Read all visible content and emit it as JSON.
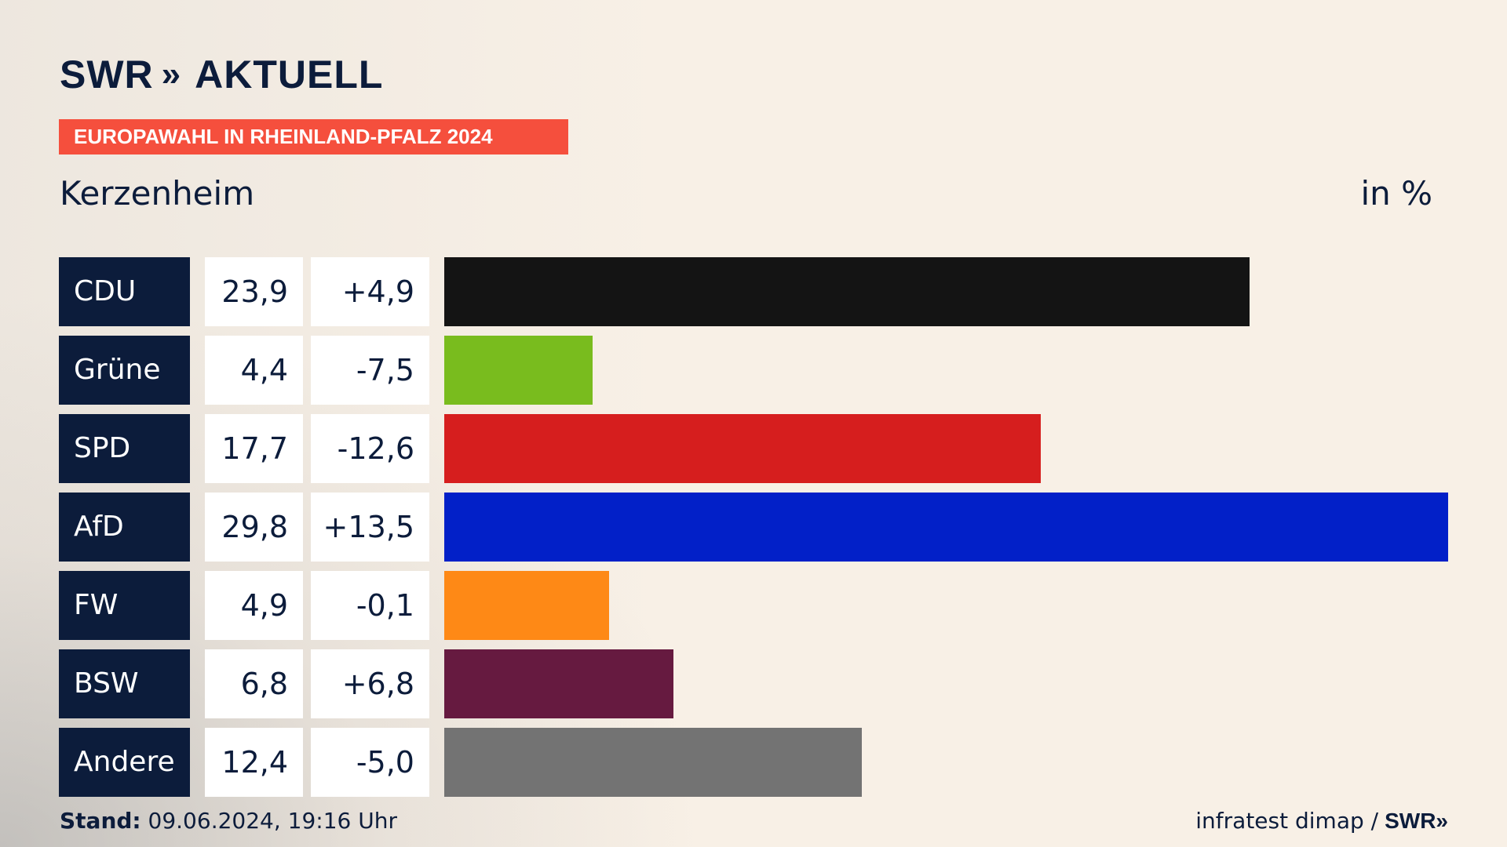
{
  "brand": {
    "name": "SWR",
    "section": "AKTUELL",
    "chevrons": "»"
  },
  "header": {
    "election": "EUROPAWAHL IN RHEINLAND-PFALZ 2024",
    "region": "Kerzenheim",
    "unit": "in %"
  },
  "chart_data": {
    "type": "bar",
    "orientation": "horizontal",
    "title": "Kerzenheim",
    "subtitle": "EUROPAWAHL IN RHEINLAND-PFALZ 2024",
    "unit": "in %",
    "categories": [
      "CDU",
      "Grüne",
      "SPD",
      "AfD",
      "FW",
      "BSW",
      "Andere"
    ],
    "values": [
      23.9,
      4.4,
      17.7,
      29.8,
      4.9,
      6.8,
      12.4
    ],
    "value_labels": [
      "23,9",
      "4,4",
      "17,7",
      "29,8",
      "4,9",
      "6,8",
      "12,4"
    ],
    "diff_labels": [
      "+4,9",
      "-7,5",
      "-12,6",
      "+13,5",
      "-0,1",
      "+6,8",
      "-5,0"
    ],
    "colors": [
      "#141414",
      "#79bc1e",
      "#d61e1e",
      "#0220c8",
      "#fe8916",
      "#661a40",
      "#737373"
    ],
    "xlim": [
      0,
      29.8
    ]
  },
  "footer": {
    "stand_label": "Stand:",
    "stand_value": "09.06.2024, 19:16 Uhr",
    "source": "infratest dimap /",
    "source_logo": "SWR»"
  }
}
